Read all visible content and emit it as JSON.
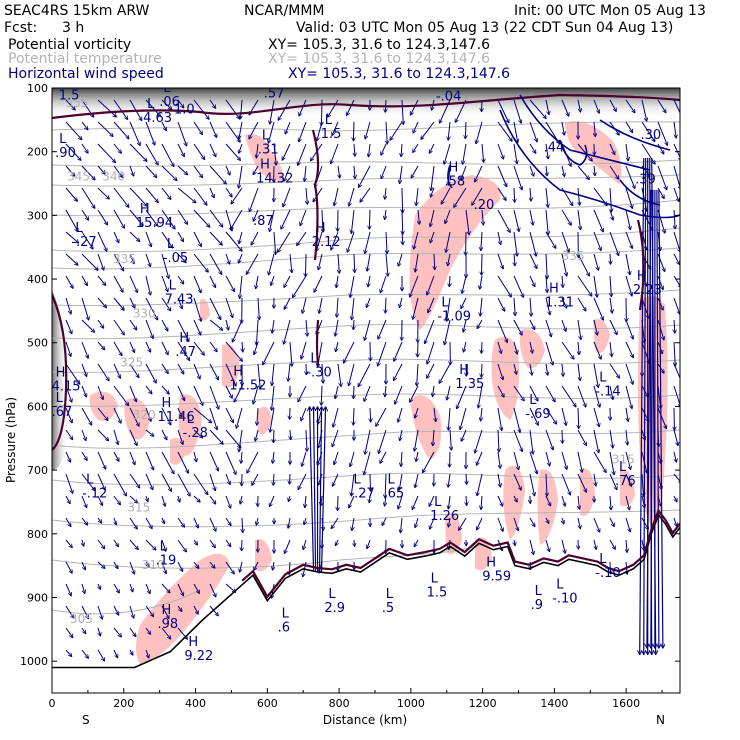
{
  "header": {
    "model": "SEAC4RS 15km ARW",
    "center": "NCAR/MMM",
    "init": "Init: 00 UTC Mon 05 Aug 13",
    "fcst_label": "Fcst:",
    "fcst_value": "3 h",
    "valid": "Valid: 03 UTC Mon 05 Aug 13 (22 CDT Sun 04 Aug 13)",
    "fields": [
      {
        "name": "Potential vorticity",
        "xy": "XY= 105.3, 31.6 to 124.3,147.6",
        "color": "#000000"
      },
      {
        "name": "Potential temperature",
        "xy": "XY= 105.3, 31.6 to 124.3,147.6",
        "color": "#b4b4b4"
      },
      {
        "name": "Horizontal wind speed",
        "xy": "XY= 105.3, 31.6 to 124.3,147.6",
        "color": "#000080"
      }
    ]
  },
  "chart_data": {
    "type": "cross-section",
    "xlabel": "Distance (km)",
    "ylabel": "Pressure (hPa)",
    "xlim": [
      0,
      1750
    ],
    "ylim": [
      100,
      1050
    ],
    "x_ticks": [
      0,
      200,
      400,
      600,
      800,
      1000,
      1200,
      1400,
      1600
    ],
    "y_ticks": [
      100,
      200,
      300,
      400,
      500,
      600,
      700,
      800,
      900,
      1000
    ],
    "left_end_label": "S",
    "right_end_label": "N",
    "theta_labels": [
      {
        "text": "355",
        "x": 38,
        "p": 130
      },
      {
        "text": "345",
        "x": 42,
        "p": 245
      },
      {
        "text": "340",
        "x": 140,
        "p": 245
      },
      {
        "text": "335",
        "x": 170,
        "p": 375
      },
      {
        "text": "330",
        "x": 225,
        "p": 460
      },
      {
        "text": "325",
        "x": 190,
        "p": 537
      },
      {
        "text": "320",
        "x": 225,
        "p": 620
      },
      {
        "text": "315",
        "x": 210,
        "p": 765
      },
      {
        "text": "310",
        "x": 250,
        "p": 855
      },
      {
        "text": "305",
        "x": 50,
        "p": 940
      },
      {
        "text": "335",
        "x": 1420,
        "p": 370
      },
      {
        "text": "315",
        "x": 1560,
        "p": 690
      }
    ],
    "pv_labels": [
      {
        "kind": "L",
        "value": "1.5",
        "x": 30,
        "p": 115
      },
      {
        "kind": "L",
        "value": "4.63",
        "x": 265,
        "p": 150
      },
      {
        "kind": "L",
        "value": ".06",
        "x": 310,
        "p": 125
      },
      {
        "kind": "L",
        "value": ".90",
        "x": 20,
        "p": 205
      },
      {
        "kind": "L",
        "value": ".31",
        "x": 585,
        "p": 200
      },
      {
        "kind": "H",
        "value": "14.32",
        "x": 580,
        "p": 245
      },
      {
        "kind": "L",
        "value": "1.5",
        "x": 760,
        "p": 175
      },
      {
        "kind": "H",
        "value": ".58",
        "x": 1105,
        "p": 250
      },
      {
        "kind": "H",
        "value": "15.94",
        "x": 245,
        "p": 315
      },
      {
        "kind": "L",
        "value": "-.27",
        "x": 65,
        "p": 345
      },
      {
        "kind": "L",
        "value": "-.05",
        "x": 320,
        "p": 370
      },
      {
        "kind": "H",
        "value": "2.12",
        "x": 735,
        "p": 345
      },
      {
        "kind": "L",
        "value": "7.43",
        "x": 325,
        "p": 435
      },
      {
        "kind": "H",
        "value": "1.31",
        "x": 1385,
        "p": 440
      },
      {
        "kind": "H",
        "value": "2.23",
        "x": 1630,
        "p": 420
      },
      {
        "kind": "L",
        "value": "-1.09",
        "x": 1085,
        "p": 462
      },
      {
        "kind": "H",
        "value": ".47",
        "x": 355,
        "p": 518
      },
      {
        "kind": "L",
        "value": "-.30",
        "x": 720,
        "p": 550
      },
      {
        "kind": "H",
        "value": "11.52",
        "x": 505,
        "p": 570
      },
      {
        "kind": "H",
        "value": "1.35",
        "x": 1135,
        "p": 568
      },
      {
        "kind": "L",
        "value": "-.14",
        "x": 1525,
        "p": 580
      },
      {
        "kind": "H",
        "value": "4.15",
        "x": 10,
        "p": 572
      },
      {
        "kind": "H",
        "value": "11.46",
        "x": 305,
        "p": 620
      },
      {
        "kind": "L",
        "value": "-.69",
        "x": 1330,
        "p": 615
      },
      {
        "kind": "L",
        "value": "-.28",
        "x": 375,
        "p": 645
      },
      {
        "kind": "L",
        "value": "-.12",
        "x": 95,
        "p": 740
      },
      {
        "kind": "L",
        "value": "-.27",
        "x": 840,
        "p": 740
      },
      {
        "kind": "L",
        "value": ".65",
        "x": 935,
        "p": 740
      },
      {
        "kind": "L",
        "value": ".76",
        "x": 1580,
        "p": 720
      },
      {
        "kind": "L",
        "value": "1.26",
        "x": 1065,
        "p": 775
      },
      {
        "kind": "L",
        "value": ".19",
        "x": 300,
        "p": 845
      },
      {
        "kind": "H",
        "value": "9.59",
        "x": 1210,
        "p": 870
      },
      {
        "kind": "L",
        "value": "-.10",
        "x": 1525,
        "p": 865
      },
      {
        "kind": "L",
        "value": "-.10",
        "x": 1405,
        "p": 905
      },
      {
        "kind": "L",
        "value": ".9",
        "x": 1345,
        "p": 915
      },
      {
        "kind": "H",
        "value": ".98",
        "x": 305,
        "p": 945
      },
      {
        "kind": "H",
        "value": "9.22",
        "x": 380,
        "p": 995
      },
      {
        "kind": "L",
        "value": ".6",
        "x": 640,
        "p": 950
      },
      {
        "kind": "L",
        "value": "2.9",
        "x": 770,
        "p": 920
      },
      {
        "kind": "L",
        "value": ".5",
        "x": 930,
        "p": 920
      },
      {
        "kind": "L",
        "value": "1.5",
        "x": 1055,
        "p": 895
      },
      {
        "kind": "L",
        "value": ".67",
        "x": 10,
        "p": 612
      }
    ],
    "pv_extra_labels": [
      {
        "text": "1.0",
        "x": 340,
        "p": 140
      },
      {
        "text": "-.04",
        "x": 1070,
        "p": 120
      },
      {
        "text": ".44",
        "x": 1370,
        "p": 200
      },
      {
        "text": ".30",
        "x": 1640,
        "p": 180
      },
      {
        "text": ".39",
        "x": 1625,
        "p": 250
      },
      {
        "text": ".20",
        "x": 1175,
        "p": 290
      },
      {
        "text": ".87",
        "x": 560,
        "p": 315
      },
      {
        "text": ".57",
        "x": 590,
        "p": 115
      }
    ],
    "terrain_p": [
      [
        0,
        1010
      ],
      [
        230,
        1010
      ],
      [
        330,
        985
      ],
      [
        420,
        935
      ],
      [
        480,
        905
      ],
      [
        530,
        880
      ],
      [
        560,
        865
      ],
      [
        600,
        905
      ],
      [
        650,
        870
      ],
      [
        700,
        855
      ],
      [
        740,
        860
      ],
      [
        780,
        862
      ],
      [
        820,
        855
      ],
      [
        860,
        860
      ],
      [
        900,
        845
      ],
      [
        940,
        830
      ],
      [
        990,
        840
      ],
      [
        1040,
        835
      ],
      [
        1080,
        830
      ],
      [
        1110,
        820
      ],
      [
        1150,
        835
      ],
      [
        1190,
        815
      ],
      [
        1230,
        825
      ],
      [
        1270,
        820
      ],
      [
        1290,
        850
      ],
      [
        1330,
        855
      ],
      [
        1370,
        845
      ],
      [
        1410,
        850
      ],
      [
        1440,
        840
      ],
      [
        1480,
        845
      ],
      [
        1520,
        850
      ],
      [
        1550,
        860
      ],
      [
        1580,
        865
      ],
      [
        1620,
        855
      ],
      [
        1650,
        840
      ],
      [
        1670,
        800
      ],
      [
        1690,
        770
      ],
      [
        1710,
        785
      ],
      [
        1730,
        805
      ],
      [
        1750,
        790
      ]
    ]
  }
}
